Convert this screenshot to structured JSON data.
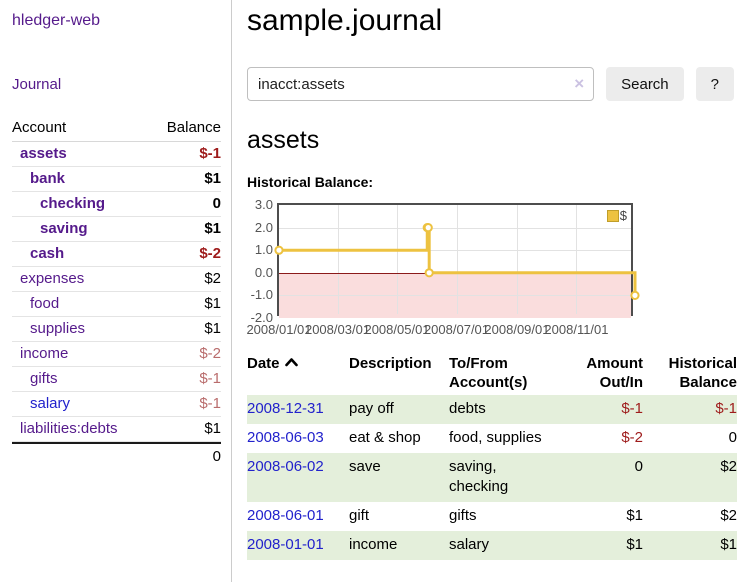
{
  "colors": {
    "link_purple": "#551a8b",
    "link_blue": "#2222cc",
    "red_strong": "#9e1b1b",
    "red_muted": "#b96c6c",
    "stripe_green": "#e4efdb",
    "chart_gold": "#edc240",
    "chart_pink": "#fadddd"
  },
  "sidebar": {
    "app_title": "hledger-web",
    "journal_link": "Journal",
    "table": {
      "headers": [
        "Account",
        "Balance"
      ],
      "rows": [
        {
          "account": "assets",
          "indent": 0,
          "match": true,
          "balance": "$-1",
          "balance_class": "neg-strong",
          "link_color": "purple"
        },
        {
          "account": "bank",
          "indent": 1,
          "match": true,
          "balance": "$1",
          "balance_class": "",
          "link_color": "purple"
        },
        {
          "account": "checking",
          "indent": 2,
          "match": true,
          "balance": "0",
          "balance_class": "",
          "link_color": "purple"
        },
        {
          "account": "saving",
          "indent": 2,
          "match": true,
          "balance": "$1",
          "balance_class": "",
          "link_color": "purple"
        },
        {
          "account": "cash",
          "indent": 1,
          "match": true,
          "balance": "$-2",
          "balance_class": "neg-strong",
          "link_color": "purple"
        },
        {
          "account": "expenses",
          "indent": 0,
          "match": false,
          "balance": "$2",
          "balance_class": "",
          "link_color": "purple"
        },
        {
          "account": "food",
          "indent": 1,
          "match": false,
          "balance": "$1",
          "balance_class": "",
          "link_color": "purple"
        },
        {
          "account": "supplies",
          "indent": 1,
          "match": false,
          "balance": "$1",
          "balance_class": "",
          "link_color": "purple"
        },
        {
          "account": "income",
          "indent": 0,
          "match": false,
          "balance": "$-2",
          "balance_class": "neg-muted",
          "link_color": "purple"
        },
        {
          "account": "gifts",
          "indent": 1,
          "match": false,
          "balance": "$-1",
          "balance_class": "neg-muted",
          "link_color": "purple"
        },
        {
          "account": "salary",
          "indent": 1,
          "match": false,
          "balance": "$-1",
          "balance_class": "neg-muted",
          "link_color": "blue"
        },
        {
          "account": "liabilities:debts",
          "indent": 0,
          "match": false,
          "balance": "$1",
          "balance_class": "",
          "link_color": "purple"
        }
      ],
      "total": "0"
    }
  },
  "main": {
    "title": "sample.journal",
    "search": {
      "value": "inacct:assets",
      "clear_icon": "×",
      "button_label": "Search",
      "help_label": "?"
    },
    "account_heading": "assets",
    "chart_label": "Historical Balance:",
    "register": {
      "headers": [
        "Date",
        "Description",
        "To/From Account(s)",
        "Amount Out/In",
        "Historical Balance"
      ],
      "sort_column": "Date",
      "sort_direction": "ascending",
      "rows": [
        {
          "date": "2008-12-31",
          "description": "pay off",
          "accounts": "debts",
          "amount": "$-1",
          "amount_negative": true,
          "balance": "$-1",
          "balance_negative": true
        },
        {
          "date": "2008-06-03",
          "description": "eat & shop",
          "accounts": "food, supplies",
          "amount": "$-2",
          "amount_negative": true,
          "balance": "0",
          "balance_negative": false
        },
        {
          "date": "2008-06-02",
          "description": "save",
          "accounts": "saving, checking",
          "amount": "0",
          "amount_negative": false,
          "balance": "$2",
          "balance_negative": false
        },
        {
          "date": "2008-06-01",
          "description": "gift",
          "accounts": "gifts",
          "amount": "$1",
          "amount_negative": false,
          "balance": "$2",
          "balance_negative": false
        },
        {
          "date": "2008-01-01",
          "description": "income",
          "accounts": "salary",
          "amount": "$1",
          "amount_negative": false,
          "balance": "$1",
          "balance_negative": false
        }
      ]
    }
  },
  "chart_data": {
    "type": "line",
    "title": "Historical Balance",
    "step": true,
    "legend": {
      "label": "$",
      "position": "top-right"
    },
    "x_range": [
      "2008-01-01",
      "2008-12-31"
    ],
    "x_range_days": [
      0,
      365
    ],
    "ylim": [
      -2,
      3
    ],
    "y_ticks": [
      3.0,
      2.0,
      1.0,
      0.0,
      -1.0,
      -2.0
    ],
    "x_ticks": [
      {
        "label": "2008/01/01",
        "day": 0
      },
      {
        "label": "2008/03/01",
        "day": 60
      },
      {
        "label": "2008/05/01",
        "day": 121
      },
      {
        "label": "2008/07/01",
        "day": 182
      },
      {
        "label": "2008/09/01",
        "day": 244
      },
      {
        "label": "2008/11/01",
        "day": 305
      }
    ],
    "series": [
      {
        "name": "$",
        "color": "#edc240",
        "points": [
          {
            "date": "2008-01-01",
            "day": 0,
            "value": 1
          },
          {
            "date": "2008-06-01",
            "day": 152,
            "value": 2
          },
          {
            "date": "2008-06-02",
            "day": 153,
            "value": 2
          },
          {
            "date": "2008-06-03",
            "day": 154,
            "value": 0
          },
          {
            "date": "2008-12-31",
            "day": 365,
            "value": -1
          }
        ]
      }
    ],
    "zero_line_color": "#8b1a1a",
    "negative_region_color": "#fadddd",
    "grid": true
  }
}
